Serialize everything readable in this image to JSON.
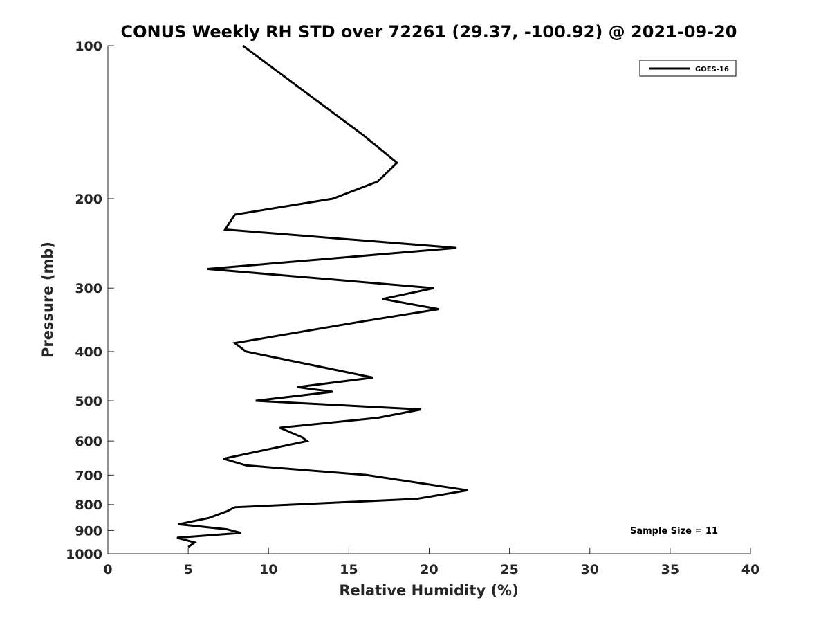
{
  "chart_data": {
    "type": "line",
    "title": "CONUS Weekly RH STD over 72261 (29.37, -100.92) @ 2021-09-20",
    "xlabel": "Relative Humidity (%)",
    "ylabel": "Pressure (mb)",
    "xlim": [
      0,
      40
    ],
    "ylim": [
      100,
      1000
    ],
    "y_scale": "log",
    "y_reversed": true,
    "x_ticks": [
      "0",
      "5",
      "10",
      "15",
      "20",
      "25",
      "30",
      "35",
      "40"
    ],
    "y_ticks": [
      "100",
      "200",
      "300",
      "400",
      "500",
      "600",
      "700",
      "800",
      "900",
      "1000"
    ],
    "grid": false,
    "legend_position": "top-right",
    "annotation": "Sample Size = 11",
    "series": [
      {
        "name": "GOES-16",
        "color": "#000000",
        "points": [
          {
            "x": 8.4,
            "y": 100
          },
          {
            "x": 15.9,
            "y": 150
          },
          {
            "x": 18.0,
            "y": 170
          },
          {
            "x": 16.8,
            "y": 185
          },
          {
            "x": 14.0,
            "y": 200
          },
          {
            "x": 7.9,
            "y": 215
          },
          {
            "x": 7.3,
            "y": 230
          },
          {
            "x": 21.7,
            "y": 250
          },
          {
            "x": 6.2,
            "y": 275
          },
          {
            "x": 20.3,
            "y": 300
          },
          {
            "x": 17.1,
            "y": 315
          },
          {
            "x": 20.6,
            "y": 330
          },
          {
            "x": 15.6,
            "y": 350
          },
          {
            "x": 7.9,
            "y": 385
          },
          {
            "x": 8.6,
            "y": 400
          },
          {
            "x": 16.5,
            "y": 450
          },
          {
            "x": 11.8,
            "y": 470
          },
          {
            "x": 14.0,
            "y": 480
          },
          {
            "x": 9.2,
            "y": 500
          },
          {
            "x": 19.5,
            "y": 520
          },
          {
            "x": 16.8,
            "y": 540
          },
          {
            "x": 10.7,
            "y": 565
          },
          {
            "x": 12.1,
            "y": 590
          },
          {
            "x": 12.4,
            "y": 600
          },
          {
            "x": 7.2,
            "y": 650
          },
          {
            "x": 8.6,
            "y": 670
          },
          {
            "x": 16.1,
            "y": 700
          },
          {
            "x": 22.4,
            "y": 750
          },
          {
            "x": 19.2,
            "y": 780
          },
          {
            "x": 7.9,
            "y": 810
          },
          {
            "x": 7.4,
            "y": 825
          },
          {
            "x": 6.3,
            "y": 850
          },
          {
            "x": 4.4,
            "y": 875
          },
          {
            "x": 5.2,
            "y": 880
          },
          {
            "x": 7.4,
            "y": 895
          },
          {
            "x": 8.3,
            "y": 910
          },
          {
            "x": 4.3,
            "y": 930
          },
          {
            "x": 5.4,
            "y": 950
          },
          {
            "x": 5.0,
            "y": 970
          }
        ]
      }
    ]
  }
}
